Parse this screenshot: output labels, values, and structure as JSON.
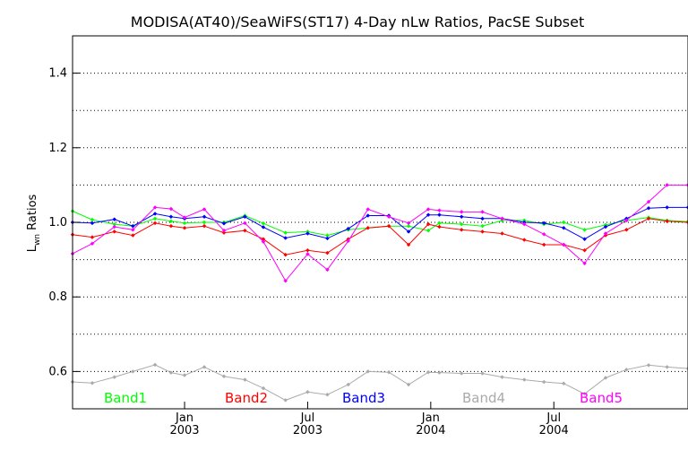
{
  "chart_data": {
    "type": "line",
    "title": "MODISA(AT40)/SeaWiFS(ST17) 4-Day nLw Ratios, PacSE Subset",
    "ylabel_main": "L",
    "ylabel_sub": "wn",
    "ylabel_rest": " Ratios",
    "xlim": [
      2002.545,
      2005.045
    ],
    "ylim": [
      0.5,
      1.5
    ],
    "yticks": [
      0.6,
      0.8,
      1.0,
      1.2,
      1.4
    ],
    "ytick_labels": [
      "0.6",
      "0.8",
      "1.0",
      "1.2",
      "1.4"
    ],
    "grid_y": [
      0.6,
      0.7,
      0.8,
      0.9,
      1.0,
      1.1,
      1.2,
      1.3,
      1.4
    ],
    "xticks": [
      {
        "x": 2003.0,
        "month": "Jan",
        "year": "2003"
      },
      {
        "x": 2003.5,
        "month": "Jul",
        "year": "2003"
      },
      {
        "x": 2004.0,
        "month": "Jan",
        "year": "2004"
      },
      {
        "x": 2004.5,
        "month": "Jul",
        "year": "2004"
      }
    ],
    "x": [
      2002.545,
      2002.625,
      2002.715,
      2002.79,
      2002.88,
      2002.945,
      2003.0,
      2003.08,
      2003.16,
      2003.245,
      2003.32,
      2003.41,
      2003.5,
      2003.58,
      2003.665,
      2003.745,
      2003.83,
      2003.91,
      2003.99,
      2004.035,
      2004.125,
      2004.21,
      2004.29,
      2004.38,
      2004.46,
      2004.54,
      2004.625,
      2004.71,
      2004.795,
      2004.885,
      2004.96,
      2005.045
    ],
    "series": [
      {
        "name": "Band1",
        "color": "#00ff00",
        "values": [
          1.03,
          1.007,
          0.995,
          0.99,
          1.01,
          1.003,
          0.998,
          1.0,
          1.0,
          1.018,
          0.997,
          0.972,
          0.975,
          0.965,
          0.98,
          0.985,
          0.99,
          0.99,
          0.978,
          0.998,
          0.995,
          0.99,
          1.005,
          1.005,
          0.995,
          1.0,
          0.98,
          0.993,
          1.005,
          1.013,
          1.005,
          1.002
        ]
      },
      {
        "name": "Band2",
        "color": "#ff0000",
        "values": [
          0.967,
          0.96,
          0.975,
          0.965,
          0.998,
          0.99,
          0.985,
          0.99,
          0.972,
          0.978,
          0.955,
          0.913,
          0.925,
          0.918,
          0.955,
          0.985,
          0.99,
          0.94,
          0.995,
          0.988,
          0.98,
          0.975,
          0.97,
          0.953,
          0.94,
          0.94,
          0.925,
          0.965,
          0.98,
          1.01,
          1.003,
          1.0
        ]
      },
      {
        "name": "Band3",
        "color": "#0000ff",
        "values": [
          1.0,
          0.998,
          1.008,
          0.99,
          1.023,
          1.015,
          1.01,
          1.015,
          0.997,
          1.015,
          0.987,
          0.958,
          0.97,
          0.957,
          0.983,
          1.018,
          1.018,
          0.975,
          1.02,
          1.02,
          1.015,
          1.01,
          1.01,
          1.0,
          0.998,
          0.985,
          0.955,
          0.988,
          1.01,
          1.038,
          1.04,
          1.04
        ]
      },
      {
        "name": "Band4",
        "color": "#aaaaaa",
        "values": [
          0.572,
          0.569,
          0.585,
          0.6,
          0.618,
          0.597,
          0.59,
          0.612,
          0.587,
          0.578,
          0.555,
          0.523,
          0.545,
          0.538,
          0.565,
          0.6,
          0.598,
          0.565,
          0.598,
          0.597,
          0.595,
          0.595,
          0.585,
          0.578,
          0.572,
          0.568,
          0.54,
          0.583,
          0.605,
          0.617,
          0.612,
          0.608
        ]
      },
      {
        "name": "Band5",
        "color": "#ff00ff",
        "values": [
          0.916,
          0.943,
          0.988,
          0.98,
          1.04,
          1.036,
          1.013,
          1.035,
          0.978,
          0.998,
          0.948,
          0.843,
          0.915,
          0.873,
          0.95,
          1.035,
          1.015,
          0.998,
          1.035,
          1.032,
          1.028,
          1.028,
          1.01,
          0.995,
          0.968,
          0.94,
          0.89,
          0.97,
          1.005,
          1.055,
          1.1,
          1.1
        ]
      }
    ]
  }
}
